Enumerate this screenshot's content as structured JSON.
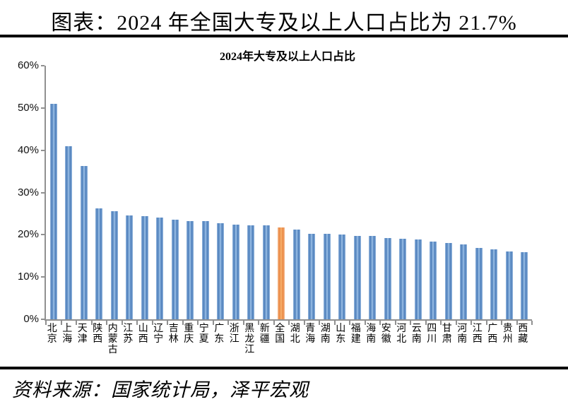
{
  "page": {
    "doc_title": "图表：2024 年全国大专及以上人口占比为 21.7%",
    "source": "资料来源：国家统计局，泽平宏观"
  },
  "chart_data": {
    "type": "bar",
    "title": "2024年大专及以上人口占比",
    "categories": [
      "北京",
      "上海",
      "天津",
      "陕西",
      "内蒙古",
      "江苏",
      "山西",
      "辽宁",
      "吉林",
      "重庆",
      "宁夏",
      "广东",
      "浙江",
      "黑龙江",
      "新疆",
      "全国",
      "湖北",
      "青海",
      "湖南",
      "山东",
      "福建",
      "海南",
      "安徽",
      "河北",
      "云南",
      "四川",
      "甘肃",
      "河南",
      "江西",
      "广西",
      "贵州",
      "西藏"
    ],
    "values": [
      51.0,
      41.0,
      36.3,
      26.2,
      25.6,
      24.6,
      24.4,
      24.0,
      23.5,
      23.3,
      23.3,
      22.7,
      22.4,
      22.3,
      22.3,
      21.7,
      21.2,
      20.3,
      20.2,
      20.1,
      19.8,
      19.7,
      19.3,
      19.0,
      18.9,
      18.4,
      18.0,
      17.7,
      16.9,
      16.5,
      16.1,
      15.9
    ],
    "unit": "%",
    "ylim": [
      0,
      60
    ],
    "ytick_step": 10,
    "ytick_labels": [
      "0%",
      "10%",
      "20%",
      "30%",
      "40%",
      "50%",
      "60%"
    ],
    "grid": false,
    "legend": "none",
    "highlight_category": "全国",
    "bar_color": "#4f81bd",
    "highlight_color": "#ed9c5c",
    "axis_color": "#909090"
  }
}
